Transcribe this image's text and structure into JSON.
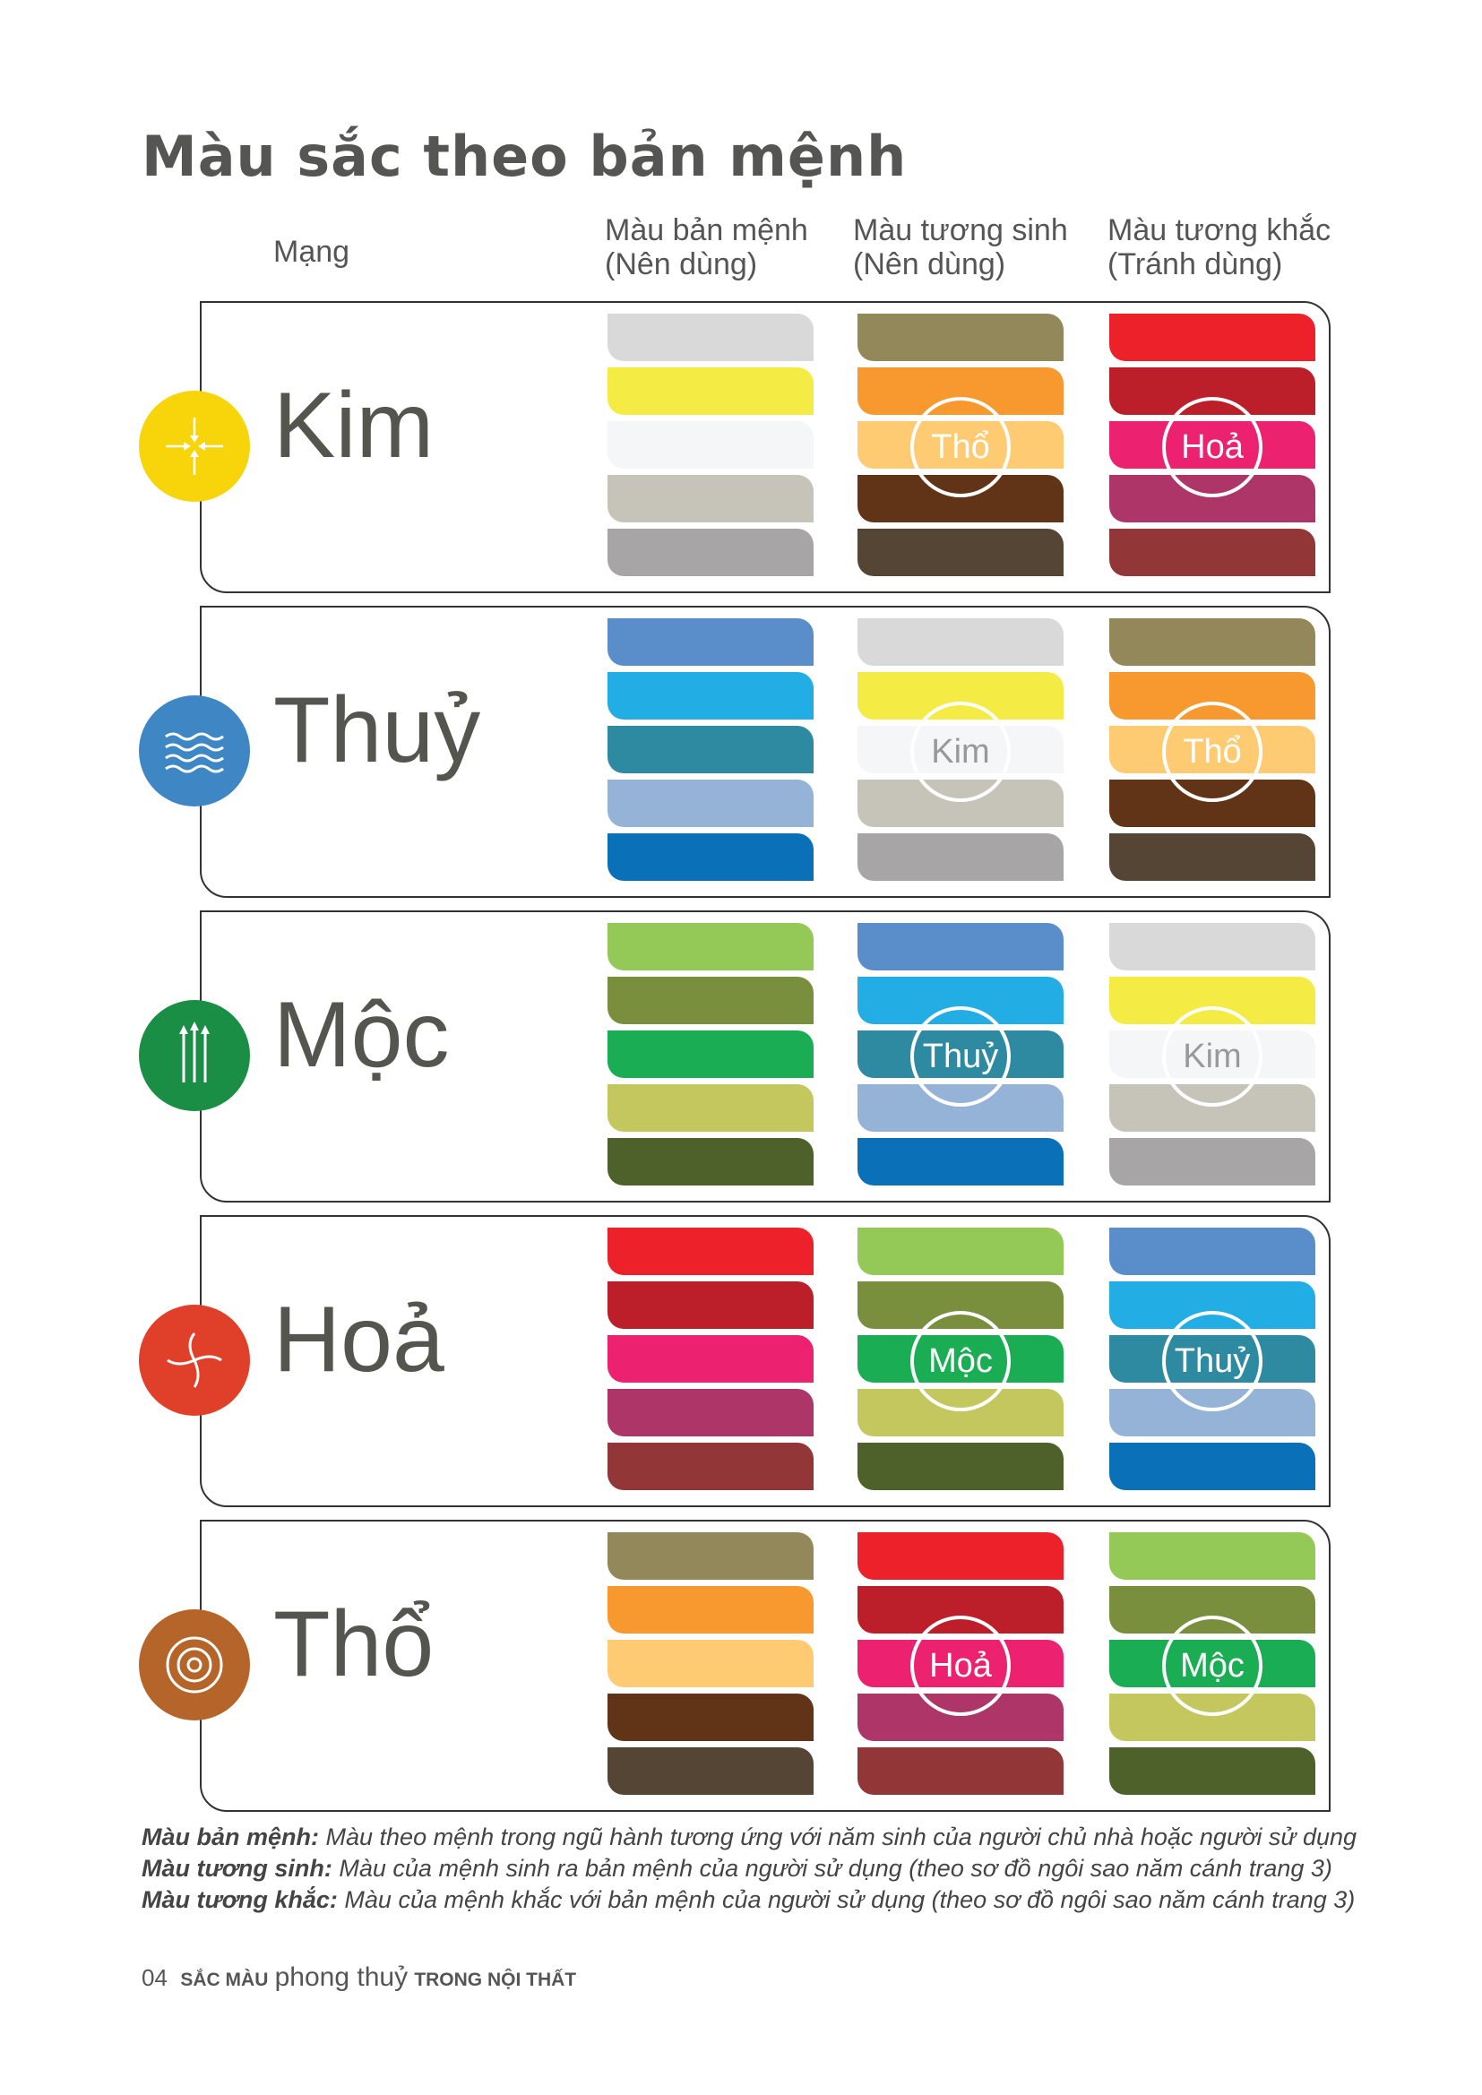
{
  "title": "Màu sắc theo bản mệnh",
  "headers": {
    "mang": "Mạng",
    "col1": [
      "Màu bản mệnh",
      "(Nên dùng)"
    ],
    "col2": [
      "Màu tương sinh",
      "(Nên dùng)"
    ],
    "col3": [
      "Màu tương khắc",
      "(Tránh dùng)"
    ]
  },
  "palettes": {
    "Kim": [
      "#D9D9D9",
      "#F4EC44",
      "#F5F6F8",
      "#C6C3B8",
      "#A7A5A5"
    ],
    "Thổ": [
      "#93885A",
      "#F7992F",
      "#FECB73",
      "#623417",
      "#544535"
    ],
    "Hoả": [
      "#ED2129",
      "#BD1F2A",
      "#EC2170",
      "#AE3568",
      "#923638"
    ],
    "Thuỷ": [
      "#5A8ECB",
      "#22AEE5",
      "#2E8AA0",
      "#95B3D7",
      "#0A71B8"
    ],
    "Mộc": [
      "#95C957",
      "#7A8F3E",
      "#1BAD53",
      "#C3C75D",
      "#4F612B"
    ]
  },
  "rows": [
    {
      "name": "Kim",
      "icon": "converging-arrows-icon",
      "color": "#F8D40A",
      "sinh": "Thổ",
      "khac": "Hoả"
    },
    {
      "name": "Thuỷ",
      "icon": "waves-icon",
      "color": "#3F86C5",
      "sinh": "Kim",
      "khac": "Thổ"
    },
    {
      "name": "Mộc",
      "icon": "upward-arrows-icon",
      "color": "#1A8E44",
      "sinh": "Thuỷ",
      "khac": "Kim"
    },
    {
      "name": "Hoả",
      "icon": "spiral-arrows-icon",
      "color": "#E0402A",
      "sinh": "Mộc",
      "khac": "Thuỷ"
    },
    {
      "name": "Thổ",
      "icon": "circular-arrows-icon",
      "color": "#B5652A",
      "sinh": "Hoả",
      "khac": "Mộc"
    }
  ],
  "notes": [
    {
      "term": "Màu bản mệnh:",
      "text": " Màu theo mệnh trong ngũ hành tương ứng với năm sinh của người chủ nhà hoặc người sử dụng"
    },
    {
      "term": "Màu tương sinh:",
      "text": " Màu của mệnh sinh ra bản mệnh của người sử dụng (theo sơ đồ ngôi sao năm cánh trang 3)"
    },
    {
      "term": "Màu tương khắc:",
      "text": " Màu của mệnh khắc với bản mệnh của người sử dụng (theo sơ đồ ngôi sao năm cánh trang 3)"
    }
  ],
  "footer": {
    "page": "04",
    "a": "SẮC MÀU",
    "b": "phong thuỷ",
    "c": "TRONG NỘI THẤT"
  }
}
